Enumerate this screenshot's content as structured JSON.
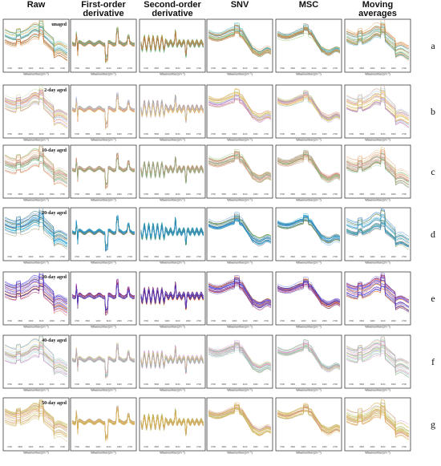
{
  "columns": [
    {
      "title": [
        "Raw"
      ]
    },
    {
      "title": [
        "First-order",
        "derivative"
      ]
    },
    {
      "title": [
        "Second-order",
        "derivative"
      ]
    },
    {
      "title": [
        "SNV"
      ]
    },
    {
      "title": [
        "MSC"
      ]
    },
    {
      "title": [
        "Moving",
        "averages"
      ]
    }
  ],
  "rows": [
    {
      "letter": "a",
      "label": "unaged",
      "colors": [
        "#e0782a",
        "#c9692e",
        "#3aaed0",
        "#3bb0a0",
        "#7fbf4c",
        "#9a8b6a",
        "#d98a3a",
        "#4cb8c8"
      ]
    },
    {
      "letter": "b",
      "label": "2-day aged",
      "colors": [
        "#c7a9e0",
        "#e8d36a",
        "#b65aa8",
        "#f2c94c",
        "#a8d08d",
        "#e87878",
        "#8db6e8",
        "#d4b06a"
      ]
    },
    {
      "letter": "c",
      "label": "10-day aged",
      "colors": [
        "#d9826e",
        "#7cbf8a",
        "#e2a65c",
        "#c46f6f",
        "#8fb45c",
        "#e6b3a0",
        "#5fa87a",
        "#c9908a"
      ]
    },
    {
      "letter": "d",
      "label": "20-day aged",
      "colors": [
        "#1f8fd6",
        "#1aa0c8",
        "#2f6fc0",
        "#5a9a3a",
        "#8c7a3c",
        "#17b0d0",
        "#3c80e0",
        "#6a6a6a"
      ]
    },
    {
      "letter": "e",
      "label": "30-day aged",
      "colors": [
        "#2a2ad0",
        "#5530c8",
        "#d02a2a",
        "#e05a10",
        "#1a1a90",
        "#8a2ad0",
        "#f07a1a",
        "#3a50e0"
      ]
    },
    {
      "letter": "f",
      "label": "40-day aged",
      "colors": [
        "#7fcf9f",
        "#e88fa8",
        "#b79ae0",
        "#8fc8e8",
        "#e8c87a",
        "#a6d873",
        "#d68fd0",
        "#80b0a8"
      ]
    },
    {
      "letter": "g",
      "label": "50-day aged",
      "colors": [
        "#d6b64a",
        "#e0a84a",
        "#c9c35a",
        "#e89a70",
        "#b8b040",
        "#d88ad0",
        "#cfae60",
        "#a8c070"
      ]
    }
  ],
  "axis": {
    "xlabel": "Wavenumber(cm⁻¹)",
    "ticks": [
      "3700",
      "3500",
      "3300",
      "3100",
      "2900",
      "2700"
    ]
  },
  "chart_data": {
    "type": "line",
    "layout": "grid 7 rows × 6 columns of spectral panels",
    "column_titles": [
      "Raw",
      "First-order derivative",
      "Second-order derivative",
      "SNV",
      "MSC",
      "Moving averages"
    ],
    "row_letters": [
      "a",
      "b",
      "c",
      "d",
      "e",
      "f",
      "g"
    ],
    "panel_labels": [
      "unaged",
      "2-day aged",
      "10-day aged",
      "20-day aged",
      "30-day aged",
      "40-day aged",
      "50-day aged"
    ],
    "xlabel": "Wavenumber(cm⁻¹)",
    "x_ticks": [
      "3700",
      "3500",
      "3300",
      "3100",
      "2900",
      "2700"
    ],
    "grid": false
  }
}
